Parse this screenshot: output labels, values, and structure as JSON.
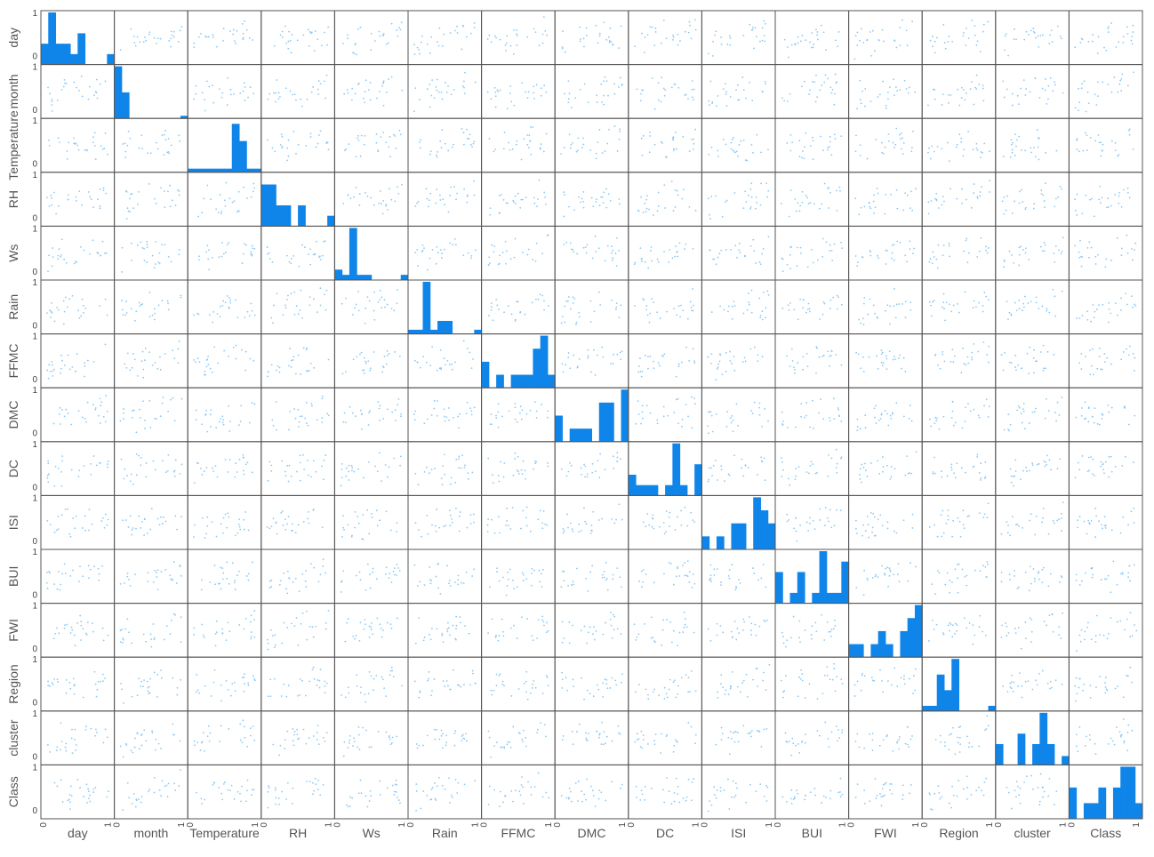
{
  "chart_data": {
    "type": "scatter-matrix",
    "variables": [
      "day",
      "month",
      "Temperature",
      "RH",
      "Ws",
      "Rain",
      "FFMC",
      "DMC",
      "DC",
      "ISI",
      "BUI",
      "FWI",
      "Region",
      "cluster",
      "Class"
    ],
    "axis_range": [
      0,
      1
    ],
    "tick_labels": [
      "0",
      "1"
    ],
    "diagonal": "histogram",
    "off_diagonal": "scatter",
    "colors": {
      "histogram": "#0f85ea",
      "points": "#8cc8f5",
      "frame": "#555555"
    },
    "histograms": [
      [
        0.4,
        1.0,
        0.4,
        0.4,
        0.2,
        0.6,
        0.0,
        0.0,
        0.0,
        0.2
      ],
      [
        1.0,
        0.5,
        0.0,
        0.0,
        0.0,
        0.0,
        0.0,
        0.0,
        0.0,
        0.05
      ],
      [
        0.07,
        0.07,
        0.07,
        0.07,
        0.07,
        0.07,
        0.93,
        0.6,
        0.07,
        0.07
      ],
      [
        0.8,
        0.8,
        0.4,
        0.4,
        0.0,
        0.4,
        0.0,
        0.0,
        0.0,
        0.2
      ],
      [
        0.2,
        0.1,
        1.0,
        0.1,
        0.1,
        0.0,
        0.0,
        0.0,
        0.0,
        0.1
      ],
      [
        0.08,
        0.08,
        1.0,
        0.08,
        0.25,
        0.25,
        0.0,
        0.0,
        0.0,
        0.08
      ],
      [
        0.5,
        0.0,
        0.25,
        0.0,
        0.25,
        0.25,
        0.25,
        0.75,
        1.0,
        0.25
      ],
      [
        0.5,
        0.0,
        0.25,
        0.25,
        0.25,
        0.0,
        0.75,
        0.75,
        0.0,
        1.0
      ],
      [
        0.4,
        0.2,
        0.2,
        0.2,
        0.0,
        0.2,
        1.0,
        0.2,
        0.0,
        0.6
      ],
      [
        0.25,
        0.0,
        0.25,
        0.0,
        0.5,
        0.5,
        0.0,
        1.0,
        0.75,
        0.5
      ],
      [
        0.6,
        0.0,
        0.2,
        0.6,
        0.0,
        0.2,
        1.0,
        0.2,
        0.2,
        0.8
      ],
      [
        0.25,
        0.25,
        0.0,
        0.25,
        0.5,
        0.25,
        0.0,
        0.5,
        0.75,
        1.0
      ],
      [
        0.1,
        0.1,
        0.7,
        0.4,
        1.0,
        0.0,
        0.0,
        0.0,
        0.0,
        0.1
      ],
      [
        0.4,
        0.0,
        0.0,
        0.6,
        0.0,
        0.4,
        1.0,
        0.4,
        0.0,
        0.17
      ],
      [
        0.6,
        0.0,
        0.3,
        0.3,
        0.6,
        0.0,
        0.6,
        1.0,
        1.0,
        0.3
      ]
    ]
  }
}
